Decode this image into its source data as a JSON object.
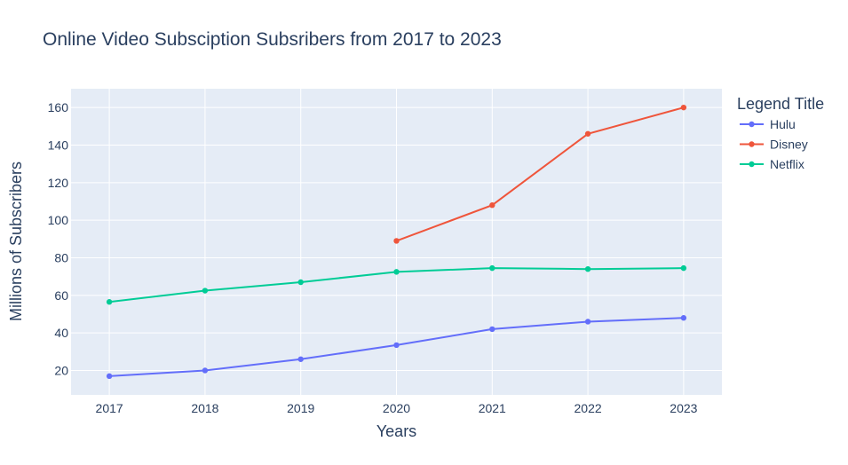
{
  "chart_data": {
    "type": "line",
    "title": "Online Video Subsciption Subsribers from 2017 to 2023",
    "xlabel": "Years",
    "ylabel": "Millions of Subscribers",
    "x": [
      2017,
      2018,
      2019,
      2020,
      2021,
      2022,
      2023
    ],
    "xlim": [
      2016.6,
      2023.4
    ],
    "ylim": [
      7,
      170
    ],
    "yticks": [
      20,
      40,
      60,
      80,
      100,
      120,
      140,
      160
    ],
    "grid": true,
    "legend_title": "Legend Title",
    "legend_position": "right",
    "plot_background": "#e5ecf6",
    "series": [
      {
        "name": "Hulu",
        "color": "#636efa",
        "values": [
          17,
          20,
          26,
          33.5,
          42,
          46,
          48
        ]
      },
      {
        "name": "Disney",
        "color": "#ef553b",
        "values": [
          null,
          null,
          null,
          89,
          108,
          146,
          160
        ]
      },
      {
        "name": "Netflix",
        "color": "#00cc96",
        "values": [
          56.5,
          62.5,
          67,
          72.5,
          74.5,
          74,
          74.5
        ]
      }
    ]
  }
}
